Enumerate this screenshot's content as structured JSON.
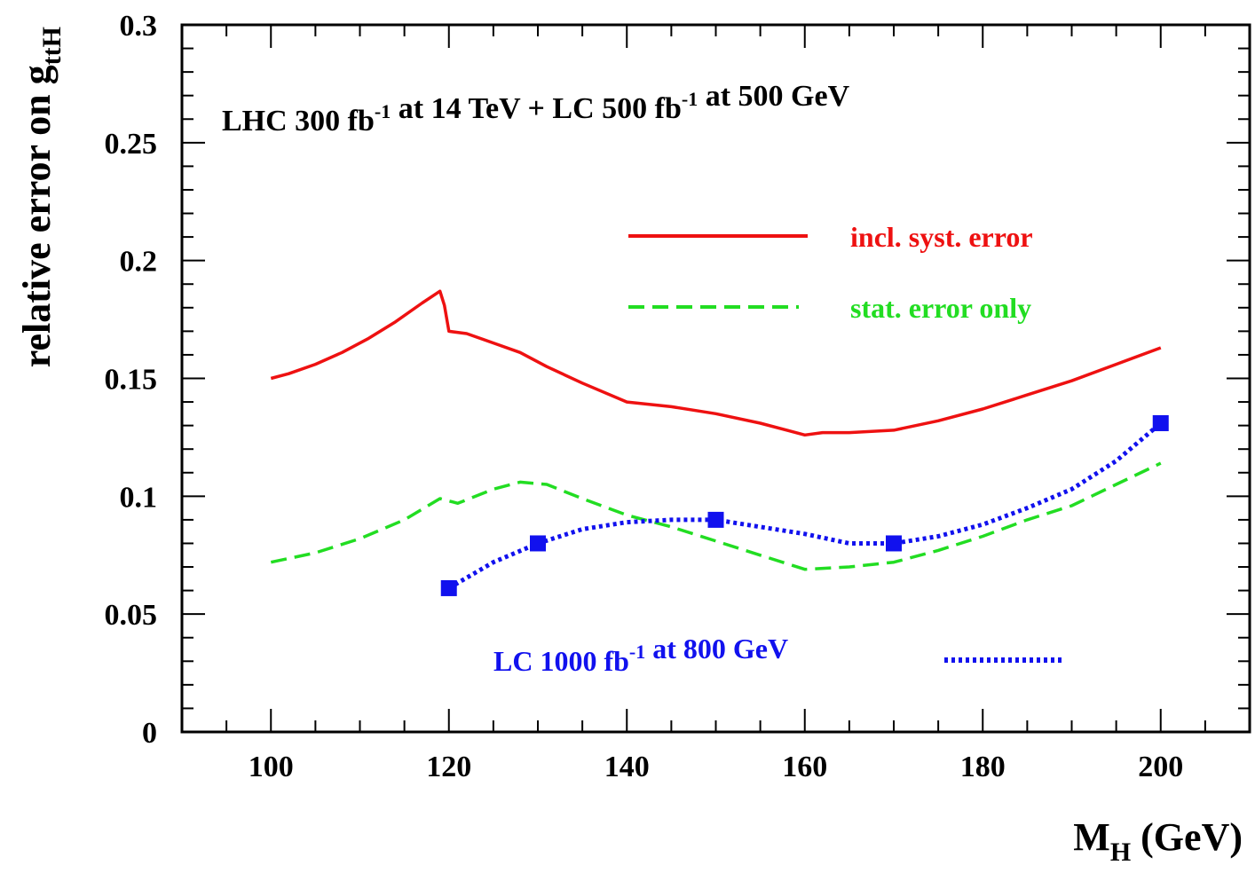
{
  "chart_data": {
    "type": "line",
    "title": {
      "parts": [
        {
          "text": "LHC 300 fb",
          "sup": "-1"
        },
        {
          "text": " at 14 TeV + LC 500 fb",
          "sup": "-1"
        },
        {
          "text": " at 500 GeV",
          "sup": ""
        }
      ]
    },
    "xlabel": {
      "main": "M",
      "sub": "H",
      "rest": " (GeV)"
    },
    "ylabel": {
      "main": "relative error on g",
      "sub": "ttH"
    },
    "xlim": [
      90,
      210
    ],
    "ylim": [
      0,
      0.3
    ],
    "x_ticks": [
      100,
      120,
      140,
      160,
      180,
      200
    ],
    "x_tick_labels": [
      "100",
      "120",
      "140",
      "160",
      "180",
      "200"
    ],
    "y_ticks": [
      0,
      0.05,
      0.1,
      0.15,
      0.2,
      0.25,
      0.3
    ],
    "y_tick_labels": [
      "0",
      "0.05",
      "0.1",
      "0.15",
      "0.2",
      "0.25",
      "0.3"
    ],
    "grid": false,
    "series": [
      {
        "name": "incl.  syst. error",
        "style": "solid",
        "color": "#ee1111",
        "x": [
          100,
          102,
          105,
          108,
          111,
          114,
          117,
          119,
          119.5,
          120,
          122,
          125,
          128,
          131,
          135,
          140,
          145,
          150,
          155,
          160,
          162,
          165,
          170,
          175,
          180,
          185,
          190,
          195,
          200
        ],
        "y": [
          0.15,
          0.152,
          0.156,
          0.161,
          0.167,
          0.174,
          0.182,
          0.187,
          0.181,
          0.17,
          0.169,
          0.165,
          0.161,
          0.155,
          0.148,
          0.14,
          0.138,
          0.135,
          0.131,
          0.126,
          0.127,
          0.127,
          0.128,
          0.132,
          0.137,
          0.143,
          0.149,
          0.156,
          0.163
        ]
      },
      {
        "name": "stat. error only",
        "style": "dashed",
        "color": "#22dd22",
        "x": [
          100,
          105,
          110,
          115,
          119,
          121,
          125,
          128,
          131,
          135,
          140,
          145,
          150,
          155,
          160,
          165,
          170,
          175,
          180,
          185,
          190,
          195,
          200
        ],
        "y": [
          0.072,
          0.076,
          0.082,
          0.09,
          0.099,
          0.097,
          0.103,
          0.106,
          0.105,
          0.099,
          0.092,
          0.087,
          0.081,
          0.075,
          0.069,
          0.07,
          0.072,
          0.077,
          0.083,
          0.09,
          0.096,
          0.105,
          0.114
        ]
      },
      {
        "name": "LC 1000 fb-1 at 800 GeV",
        "legend_parts": [
          {
            "text": "LC 1000 fb",
            "sup": "-1"
          },
          {
            "text": " at 800 GeV",
            "sup": ""
          }
        ],
        "style": "dotted",
        "color": "#1111ee",
        "x": [
          120,
          125,
          130,
          135,
          140,
          145,
          150,
          155,
          160,
          165,
          170,
          175,
          180,
          185,
          190,
          195,
          200
        ],
        "y": [
          0.061,
          0.072,
          0.08,
          0.086,
          0.089,
          0.09,
          0.09,
          0.087,
          0.084,
          0.08,
          0.08,
          0.083,
          0.088,
          0.095,
          0.103,
          0.115,
          0.131
        ],
        "markers": {
          "x": [
            120,
            130,
            150,
            170,
            200
          ],
          "y": [
            0.061,
            0.08,
            0.09,
            0.08,
            0.131
          ]
        }
      }
    ]
  }
}
